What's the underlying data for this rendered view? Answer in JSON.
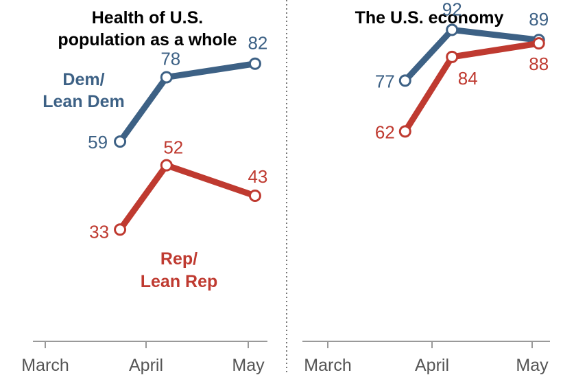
{
  "colors": {
    "dem": "#3d6185",
    "rep": "#bf3a30",
    "axis": "#999999",
    "divider": "#777777"
  },
  "series_labels": {
    "dem": [
      "Dem/",
      "Lean Dem"
    ],
    "rep": [
      "Rep/",
      "Lean Rep"
    ]
  },
  "chart_data": [
    {
      "type": "line",
      "title": [
        "Health of U.S.",
        "population as a whole"
      ],
      "x_ticks": [
        "March",
        "April",
        "May"
      ],
      "x": [
        "Mar 24",
        "Apr 7",
        "May 3"
      ],
      "ylim": [
        0,
        100
      ],
      "series": [
        {
          "name": "Dem/Lean Dem",
          "key": "dem",
          "values": [
            59,
            78,
            82
          ]
        },
        {
          "name": "Rep/Lean Rep",
          "key": "rep",
          "values": [
            33,
            52,
            43
          ]
        }
      ]
    },
    {
      "type": "line",
      "title": [
        "The U.S. economy"
      ],
      "x_ticks": [
        "March",
        "April",
        "May"
      ],
      "x": [
        "Mar 24",
        "Apr 7",
        "May 3"
      ],
      "ylim": [
        0,
        100
      ],
      "series": [
        {
          "name": "Dem/Lean Dem",
          "key": "dem",
          "values": [
            77,
            92,
            89
          ]
        },
        {
          "name": "Rep/Lean Rep",
          "key": "rep",
          "values": [
            62,
            84,
            88
          ]
        }
      ]
    }
  ]
}
